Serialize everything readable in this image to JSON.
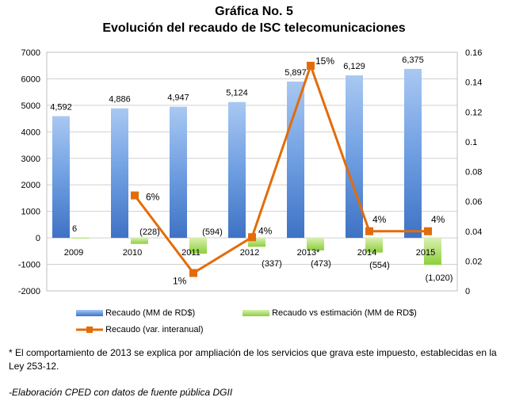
{
  "title": "Gráfica No. 5",
  "subtitle": "Evolución del recaudo de ISC telecomunicaciones",
  "colors": {
    "bars": "#5b8fd6",
    "deviation": "#92d050",
    "line": "#e36c0a"
  },
  "chart_data": {
    "type": "bar",
    "categories": [
      "2009",
      "2010",
      "2011",
      "2012",
      "2013*",
      "2014",
      "2015"
    ],
    "series": [
      {
        "name": "Recaudo (MM de RD$)",
        "type": "bar",
        "axis": "left",
        "values": [
          4592,
          4886,
          4947,
          5124,
          5897,
          6129,
          6375
        ],
        "labels": [
          "4,592",
          "4,886",
          "4,947",
          "5,124",
          "5,897",
          "6,129",
          "6,375"
        ]
      },
      {
        "name": "Recaudo vs estimación (MM de RD$)",
        "type": "bar",
        "axis": "left",
        "values": [
          6,
          -228,
          -594,
          -337,
          -473,
          -554,
          -1020
        ],
        "labels": [
          "6",
          "(228)",
          "(594)",
          "(337)",
          "(473)",
          "(554)",
          "(1,020)"
        ]
      },
      {
        "name": "Recaudo (var. interanual)",
        "type": "line",
        "axis": "right",
        "values": [
          null,
          0.064,
          0.012,
          0.036,
          0.151,
          0.04,
          0.04
        ],
        "labels": [
          "",
          "6%",
          "1%",
          "4%",
          "15%",
          "4%",
          "4%"
        ]
      }
    ],
    "ylim_left": [
      -2000,
      7000
    ],
    "yticks_left": [
      "-2000",
      "-1000",
      "0",
      "1000",
      "2000",
      "3000",
      "4000",
      "5000",
      "6000",
      "7000"
    ],
    "ylim_right": [
      0,
      0.16
    ],
    "yticks_right": [
      "0",
      "0.02",
      "0.04",
      "0.06",
      "0.08",
      "0.1",
      "0.12",
      "0.14",
      "0.16"
    ],
    "legend_position": "bottom"
  },
  "notes": {
    "footnote": "* El comportamiento de 2013 se explica por ampliación de los servicios que grava este impuesto, establecidas en la Ley 253-12.",
    "source": "-Elaboración CPED con datos de fuente pública DGII"
  }
}
